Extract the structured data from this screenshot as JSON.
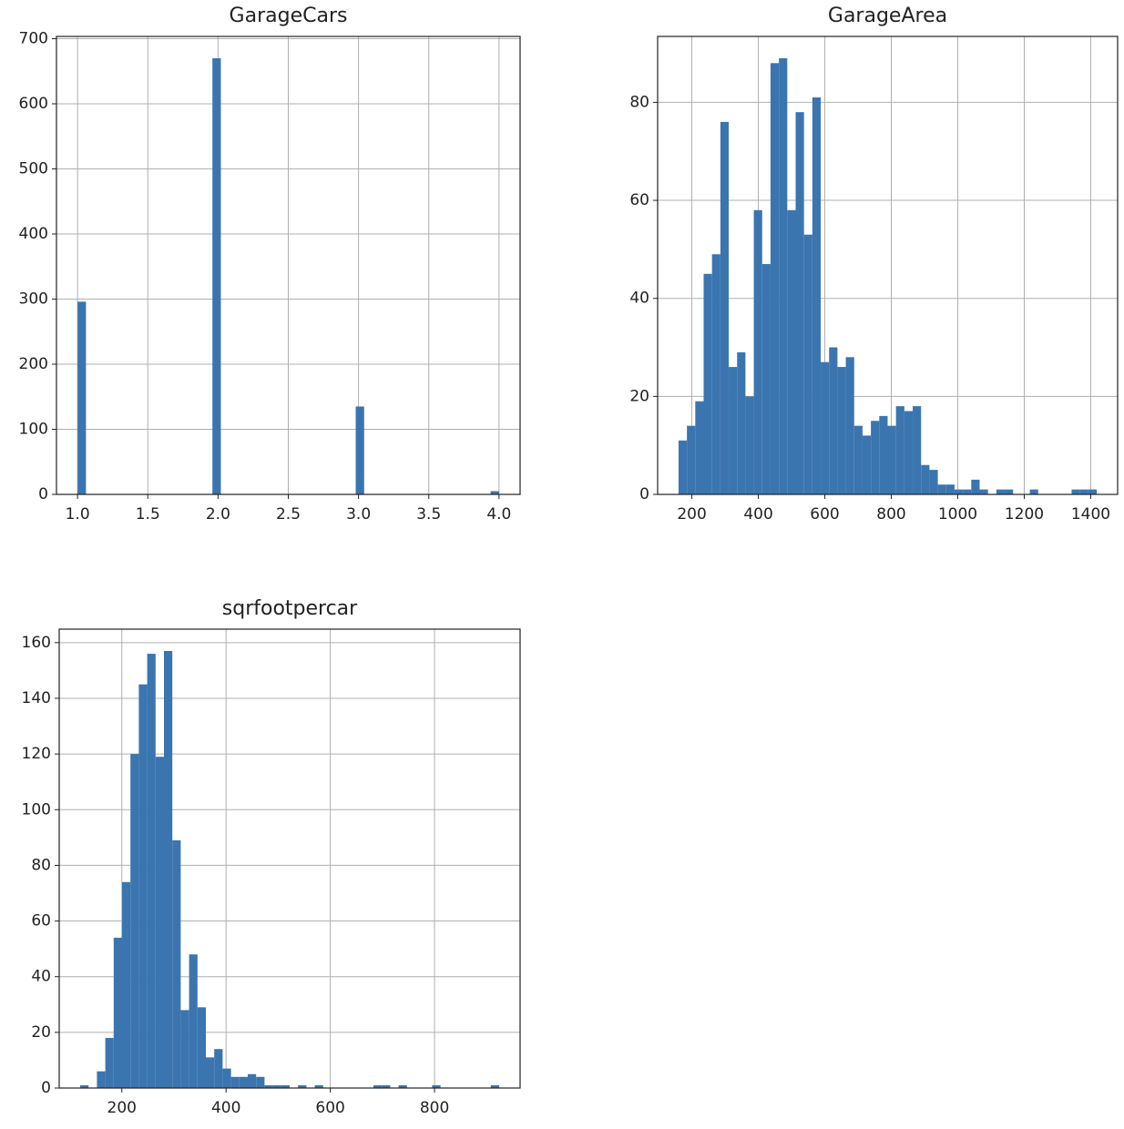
{
  "chart_data": [
    {
      "type": "histogram",
      "title": "GarageCars",
      "color": "#3b75af",
      "grid": true,
      "bins": [
        1,
        1.06,
        1.12,
        1.18,
        1.24,
        1.3,
        1.36,
        1.42,
        1.48,
        1.54,
        1.6,
        1.66,
        1.72,
        1.78,
        1.84,
        1.9,
        1.96,
        2.02,
        2.08,
        2.14,
        2.2,
        2.26,
        2.32,
        2.38,
        2.44,
        2.5,
        2.56,
        2.62,
        2.68,
        2.74,
        2.8,
        2.86,
        2.92,
        2.98,
        3.04,
        3.1,
        3.16,
        3.22,
        3.28,
        3.34,
        3.4,
        3.46,
        3.52,
        3.58,
        3.64,
        3.7,
        3.76,
        3.82,
        3.88,
        3.94,
        4
      ],
      "values": [
        296,
        0,
        0,
        0,
        0,
        0,
        0,
        0,
        0,
        0,
        0,
        0,
        0,
        0,
        0,
        0,
        670,
        0,
        0,
        0,
        0,
        0,
        0,
        0,
        0,
        0,
        0,
        0,
        0,
        0,
        0,
        0,
        0,
        135,
        0,
        0,
        0,
        0,
        0,
        0,
        0,
        0,
        0,
        0,
        0,
        0,
        0,
        0,
        0,
        5
      ],
      "xlim": [
        0.85,
        4.15
      ],
      "ylim": [
        0,
        703.5
      ],
      "xticks": [
        {
          "value": 1,
          "label": "1.0"
        },
        {
          "value": 1.5,
          "label": "1.5"
        },
        {
          "value": 2,
          "label": "2.0"
        },
        {
          "value": 2.5,
          "label": "2.5"
        },
        {
          "value": 3,
          "label": "3.0"
        },
        {
          "value": 3.5,
          "label": "3.5"
        },
        {
          "value": 4,
          "label": "4.0"
        }
      ],
      "yticks": [
        0,
        100,
        200,
        300,
        400,
        500,
        600,
        700
      ]
    },
    {
      "type": "histogram",
      "title": "GarageArea",
      "color": "#3b75af",
      "grid": true,
      "bins": [
        160,
        185.16,
        210.32,
        235.48,
        260.64,
        285.8,
        310.96,
        336.12,
        361.28,
        386.44,
        411.6,
        436.76,
        461.92,
        487.08,
        512.24,
        537.4,
        562.56,
        587.72,
        612.88,
        638.04,
        663.2,
        688.36,
        713.52,
        738.68,
        763.84,
        789,
        814.16,
        839.32,
        864.48,
        889.64,
        914.8,
        939.96,
        965.12,
        990.28,
        1015.44,
        1040.6,
        1065.76,
        1090.92,
        1116.08,
        1141.24,
        1166.4,
        1191.56,
        1216.72,
        1241.88,
        1267.04,
        1292.2,
        1317.36,
        1342.52,
        1367.68,
        1392.84,
        1418
      ],
      "values": [
        11,
        14,
        19,
        45,
        49,
        76,
        26,
        29,
        20,
        58,
        47,
        88,
        89,
        58,
        78,
        53,
        81,
        27,
        30,
        26,
        28,
        14,
        12,
        15,
        16,
        14,
        18,
        17,
        18,
        6,
        5,
        2,
        2,
        1,
        1,
        3,
        1,
        0,
        1,
        1,
        0,
        0,
        1,
        0,
        0,
        0,
        0,
        1,
        1,
        1
      ],
      "xlim": [
        97.1,
        1480.9
      ],
      "ylim": [
        0,
        93.45
      ],
      "xticks": [
        200,
        400,
        600,
        800,
        1000,
        1200,
        1400
      ],
      "yticks": [
        0,
        20,
        40,
        60,
        80
      ]
    },
    {
      "type": "histogram",
      "title": "sqrfootpercar",
      "color": "#3b75af",
      "grid": true,
      "bins": [
        120,
        136.08,
        152.16,
        168.24,
        184.32,
        200.4,
        216.48,
        232.56,
        248.64,
        264.72,
        280.8,
        296.88,
        312.96,
        329.04,
        345.12,
        361.2,
        377.28,
        393.36,
        409.44,
        425.52,
        441.6,
        457.68,
        473.76,
        489.84,
        505.92,
        522,
        538.08,
        554.16,
        570.24,
        586.32,
        602.4,
        618.48,
        634.56,
        650.64,
        666.72,
        682.8,
        698.88,
        714.96,
        731.04,
        747.12,
        763.2,
        779.28,
        795.36,
        811.44,
        827.52,
        843.6,
        859.68,
        875.76,
        891.84,
        907.92,
        924
      ],
      "values": [
        1,
        0,
        6,
        18,
        54,
        74,
        120,
        145,
        156,
        119,
        157,
        89,
        28,
        48,
        29,
        11,
        14,
        7,
        4,
        4,
        5,
        4,
        1,
        1,
        1,
        0,
        1,
        0,
        1,
        0,
        0,
        0,
        0,
        0,
        0,
        1,
        1,
        0,
        1,
        0,
        0,
        0,
        1,
        0,
        0,
        0,
        0,
        0,
        0,
        1
      ],
      "xlim": [
        79.8,
        964.2
      ],
      "ylim": [
        0,
        164.85
      ],
      "xticks": [
        200,
        400,
        600,
        800
      ],
      "yticks": [
        0,
        20,
        40,
        60,
        80,
        100,
        120,
        140,
        160
      ]
    }
  ]
}
